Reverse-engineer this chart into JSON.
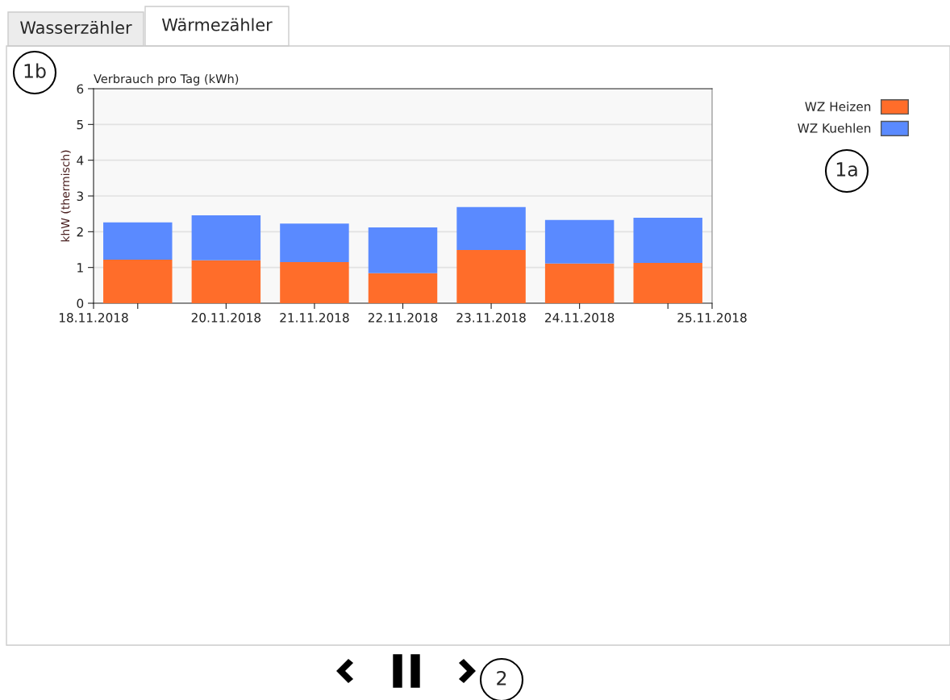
{
  "chart_data": {
    "type": "bar",
    "title": "Verbrauch pro Tag (kWh)",
    "ylabel": "khW (thermisch)",
    "stacked": true,
    "x": [
      "2018-11-19",
      "2018-11-20",
      "2018-11-21",
      "2018-11-22",
      "2018-11-23",
      "2018-11-24",
      "2018-11-25"
    ],
    "series": [
      {
        "name": "WZ Heizen",
        "color": "#ff6d2a",
        "values": [
          1.22,
          1.2,
          1.15,
          0.84,
          1.49,
          1.11,
          1.13
        ]
      },
      {
        "name": "WZ Kuehlen",
        "color": "#5a8aff",
        "values": [
          1.04,
          1.26,
          1.08,
          1.28,
          1.2,
          1.22,
          1.26
        ]
      }
    ],
    "xlim": [
      "2018-11-18T12:00",
      "2018-11-25T12:00"
    ],
    "xticks": [
      {
        "value": "2018-11-18T12:00",
        "label": "18.11.2018"
      },
      {
        "value": "2018-11-19",
        "label": null
      },
      {
        "value": "2018-11-20",
        "label": "20.11.2018"
      },
      {
        "value": "2018-11-21",
        "label": "21.11.2018"
      },
      {
        "value": "2018-11-22",
        "label": "22.11.2018"
      },
      {
        "value": "2018-11-23",
        "label": "23.11.2018"
      },
      {
        "value": "2018-11-24",
        "label": "24.11.2018"
      },
      {
        "value": "2018-11-25",
        "label": null
      },
      {
        "value": "2018-11-25T12:00",
        "label": "25.11.2018"
      }
    ],
    "ylim": [
      0,
      6
    ],
    "yticks": [
      0,
      1,
      2,
      3,
      4,
      5,
      6
    ],
    "grid": "y",
    "legend": "top right",
    "annotations": [
      "Wasserzähler",
      "Wärmezähler",
      "1b",
      "1a",
      "2"
    ]
  }
}
